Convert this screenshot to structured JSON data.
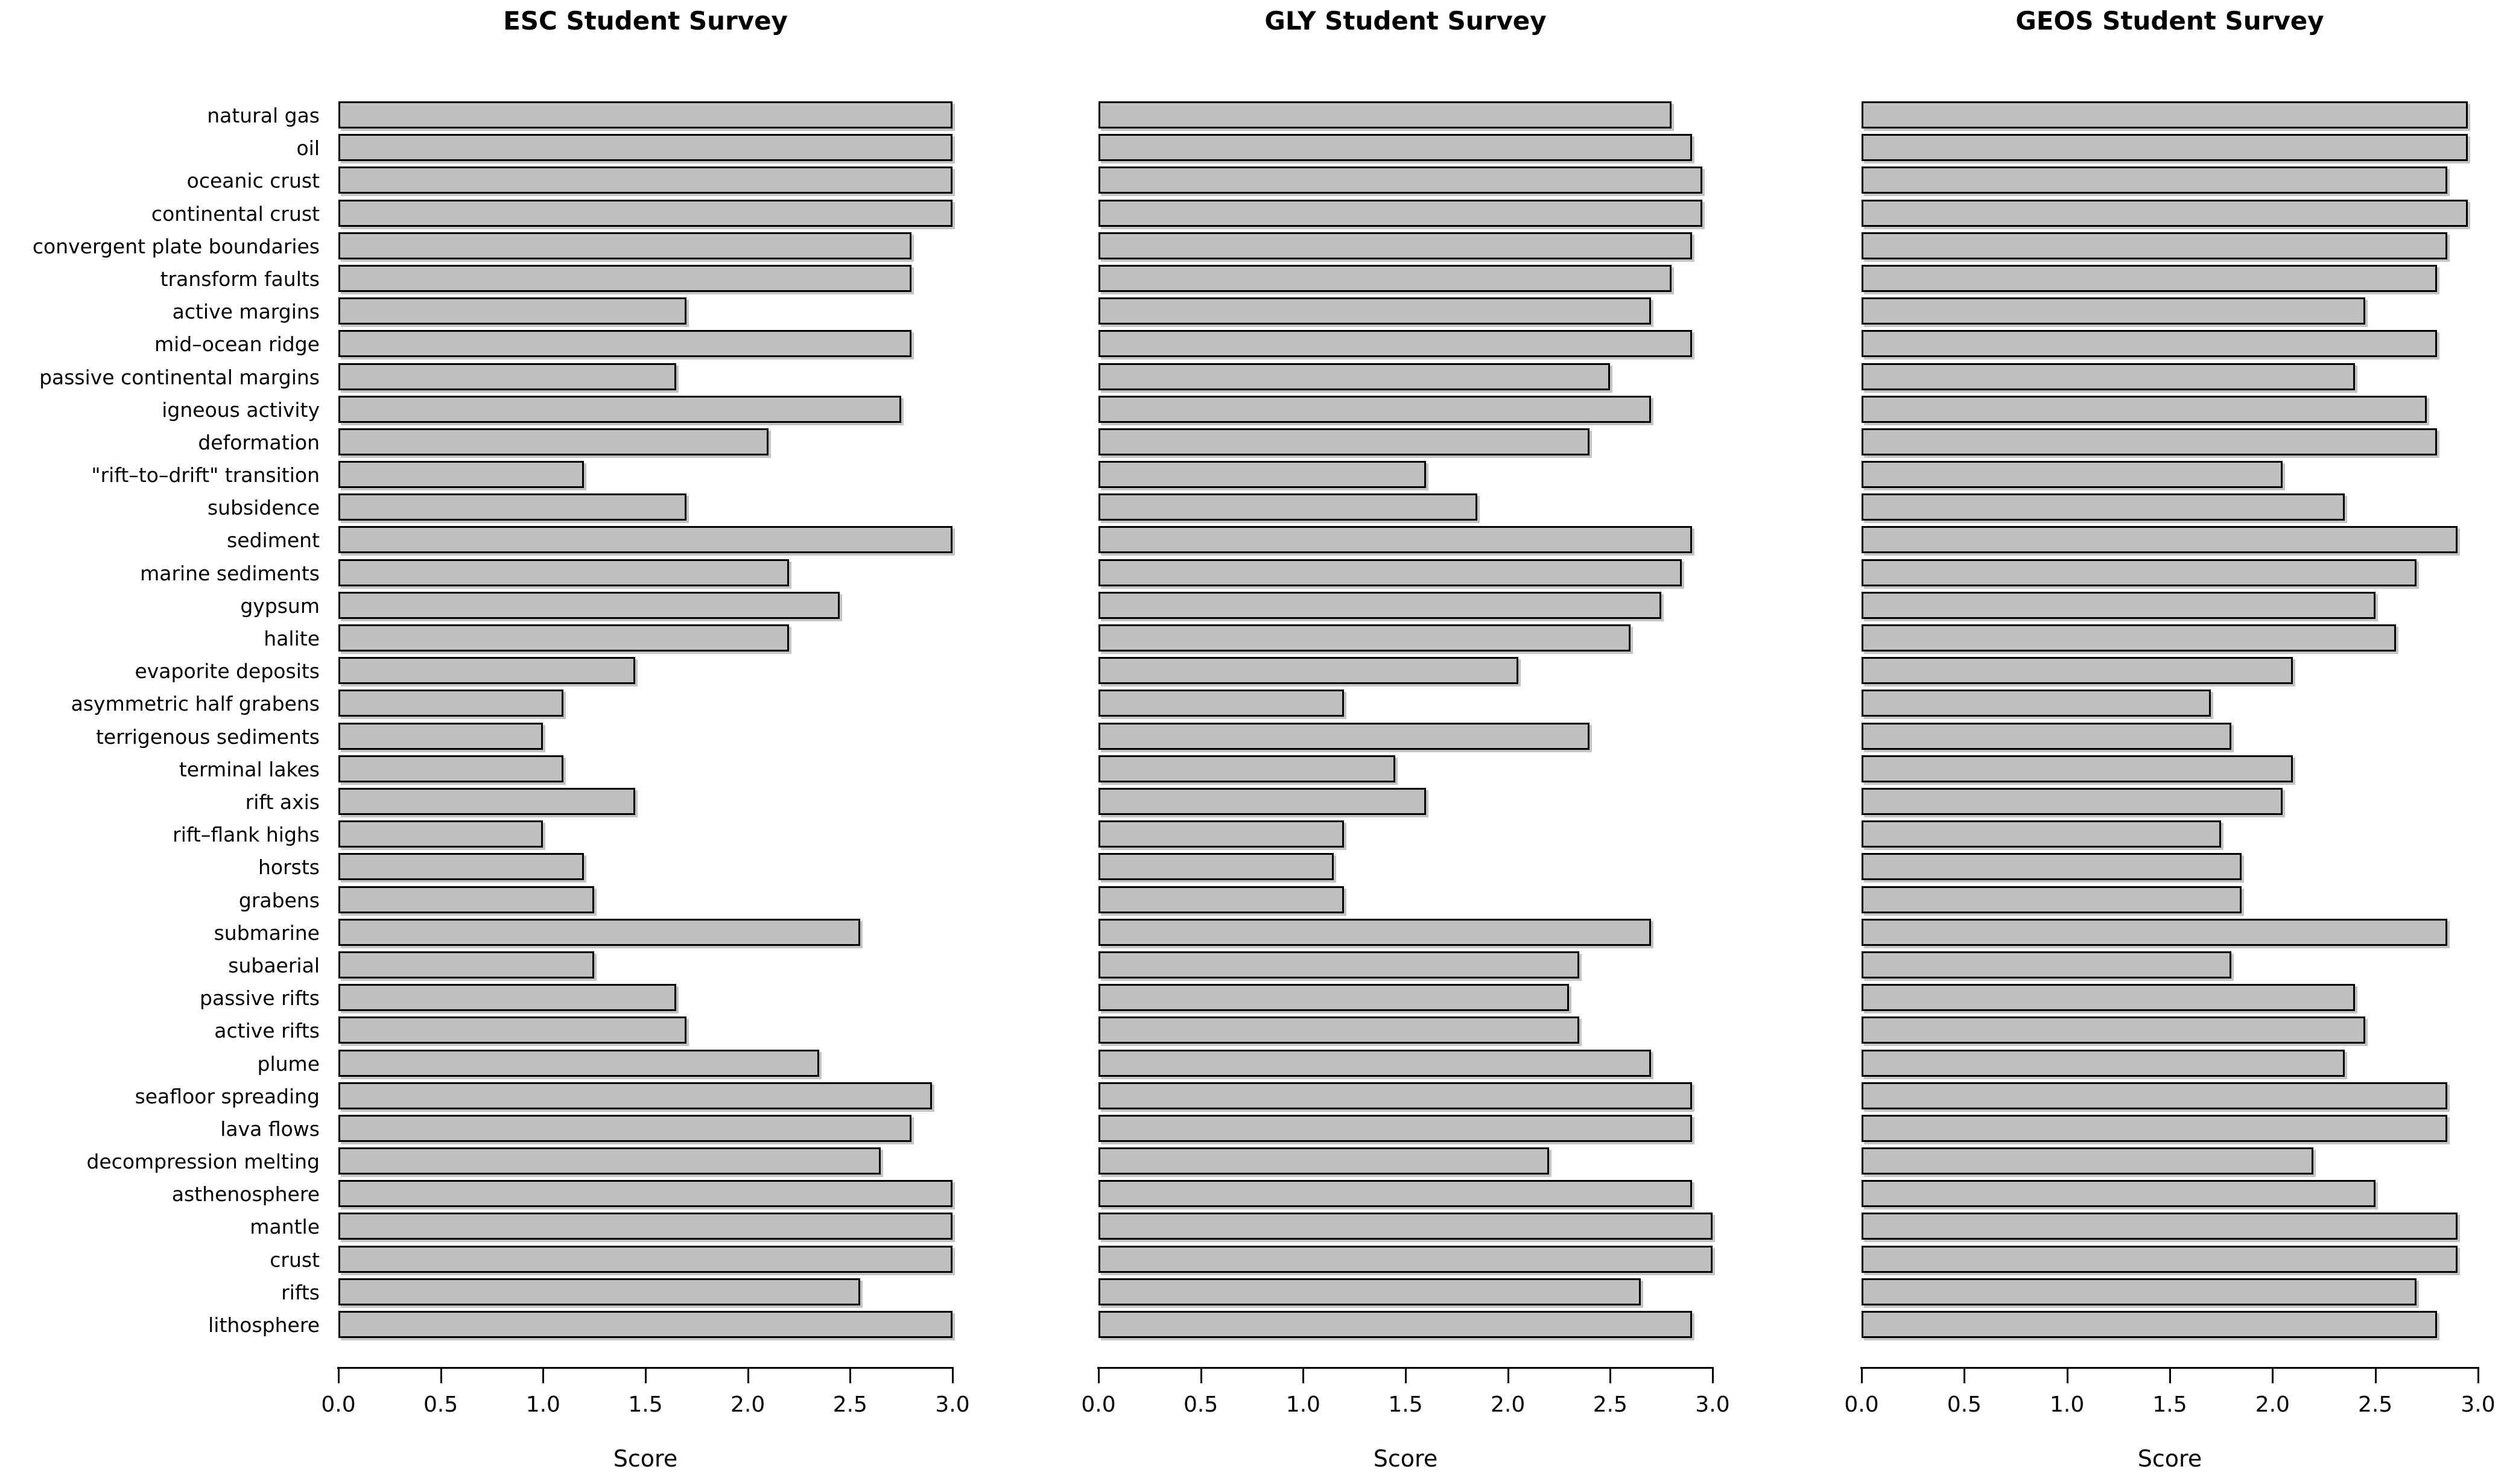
{
  "figure": {
    "background": "#ffffff",
    "bar_fill": "#bfbfbf",
    "bar_border": "#000000",
    "grid": "off",
    "legend": "none"
  },
  "chart_data": [
    {
      "type": "bar",
      "orientation": "horizontal",
      "title": "ESC Student Survey",
      "xlabel": "Score",
      "xlim": [
        0,
        3
      ],
      "x_tick_labels": [
        "0.0",
        "0.5",
        "1.0",
        "1.5",
        "2.0",
        "2.5",
        "3.0"
      ],
      "categories": [
        "natural gas",
        "oil",
        "oceanic crust",
        "continental crust",
        "convergent plate boundaries",
        "transform faults",
        "active margins",
        "mid–ocean ridge",
        "passive continental margins",
        "igneous activity",
        "deformation",
        "\"rift–to–drift\" transition",
        "subsidence",
        "sediment",
        "marine sediments",
        "gypsum",
        "halite",
        "evaporite deposits",
        "asymmetric half grabens",
        "terrigenous sediments",
        "terminal lakes",
        "rift axis",
        "rift–flank highs",
        "horsts",
        "grabens",
        "submarine",
        "subaerial",
        "passive rifts",
        "active rifts",
        "plume",
        "seafloor spreading",
        "lava flows",
        "decompression melting",
        "asthenosphere",
        "mantle",
        "crust",
        "rifts",
        "lithosphere"
      ],
      "values": [
        3.0,
        3.0,
        3.0,
        3.0,
        2.8,
        2.8,
        1.7,
        2.8,
        1.65,
        2.75,
        2.1,
        1.2,
        1.7,
        3.0,
        2.2,
        2.45,
        2.2,
        1.45,
        1.1,
        1.0,
        1.1,
        1.45,
        1.0,
        1.2,
        1.25,
        2.55,
        1.25,
        1.65,
        1.7,
        2.35,
        2.9,
        2.8,
        2.65,
        3.0,
        3.0,
        3.0,
        2.55,
        3.0
      ]
    },
    {
      "type": "bar",
      "orientation": "horizontal",
      "title": "GLY Student Survey",
      "xlabel": "Score",
      "xlim": [
        0,
        3
      ],
      "x_tick_labels": [
        "0.0",
        "0.5",
        "1.0",
        "1.5",
        "2.0",
        "2.5",
        "3.0"
      ],
      "categories": [
        "natural gas",
        "oil",
        "oceanic crust",
        "continental crust",
        "convergent plate boundaries",
        "transform faults",
        "active margins",
        "mid–ocean ridge",
        "passive continental margins",
        "igneous activity",
        "deformation",
        "\"rift–to–drift\" transition",
        "subsidence",
        "sediment",
        "marine sediments",
        "gypsum",
        "halite",
        "evaporite deposits",
        "asymmetric half grabens",
        "terrigenous sediments",
        "terminal lakes",
        "rift axis",
        "rift–flank highs",
        "horsts",
        "grabens",
        "submarine",
        "subaerial",
        "passive rifts",
        "active rifts",
        "plume",
        "seafloor spreading",
        "lava flows",
        "decompression melting",
        "asthenosphere",
        "mantle",
        "crust",
        "rifts",
        "lithosphere"
      ],
      "values": [
        2.8,
        2.9,
        2.95,
        2.95,
        2.9,
        2.8,
        2.7,
        2.9,
        2.5,
        2.7,
        2.4,
        1.6,
        1.85,
        2.9,
        2.85,
        2.75,
        2.6,
        2.05,
        1.2,
        2.4,
        1.45,
        1.6,
        1.2,
        1.15,
        1.2,
        2.7,
        2.35,
        2.3,
        2.35,
        2.7,
        2.9,
        2.9,
        2.2,
        2.9,
        3.0,
        3.0,
        2.65,
        2.9
      ]
    },
    {
      "type": "bar",
      "orientation": "horizontal",
      "title": "GEOS Student Survey",
      "xlabel": "Score",
      "xlim": [
        0,
        3
      ],
      "x_tick_labels": [
        "0.0",
        "0.5",
        "1.0",
        "1.5",
        "2.0",
        "2.5",
        "3.0"
      ],
      "categories": [
        "natural gas",
        "oil",
        "oceanic crust",
        "continental crust",
        "convergent plate boundaries",
        "transform faults",
        "active margins",
        "mid–ocean ridge",
        "passive continental margins",
        "igneous activity",
        "deformation",
        "\"rift–to–drift\" transition",
        "subsidence",
        "sediment",
        "marine sediments",
        "gypsum",
        "halite",
        "evaporite deposits",
        "asymmetric half grabens",
        "terrigenous sediments",
        "terminal lakes",
        "rift axis",
        "rift–flank highs",
        "horsts",
        "grabens",
        "submarine",
        "subaerial",
        "passive rifts",
        "active rifts",
        "plume",
        "seafloor spreading",
        "lava flows",
        "decompression melting",
        "asthenosphere",
        "mantle",
        "crust",
        "rifts",
        "lithosphere"
      ],
      "values": [
        2.95,
        2.95,
        2.85,
        2.95,
        2.85,
        2.8,
        2.45,
        2.8,
        2.4,
        2.75,
        2.8,
        2.05,
        2.35,
        2.9,
        2.7,
        2.5,
        2.6,
        2.1,
        1.7,
        1.8,
        2.1,
        2.05,
        1.75,
        1.85,
        1.85,
        2.85,
        1.8,
        2.4,
        2.45,
        2.35,
        2.85,
        2.85,
        2.2,
        2.5,
        2.9,
        2.9,
        2.7,
        2.8
      ]
    }
  ]
}
